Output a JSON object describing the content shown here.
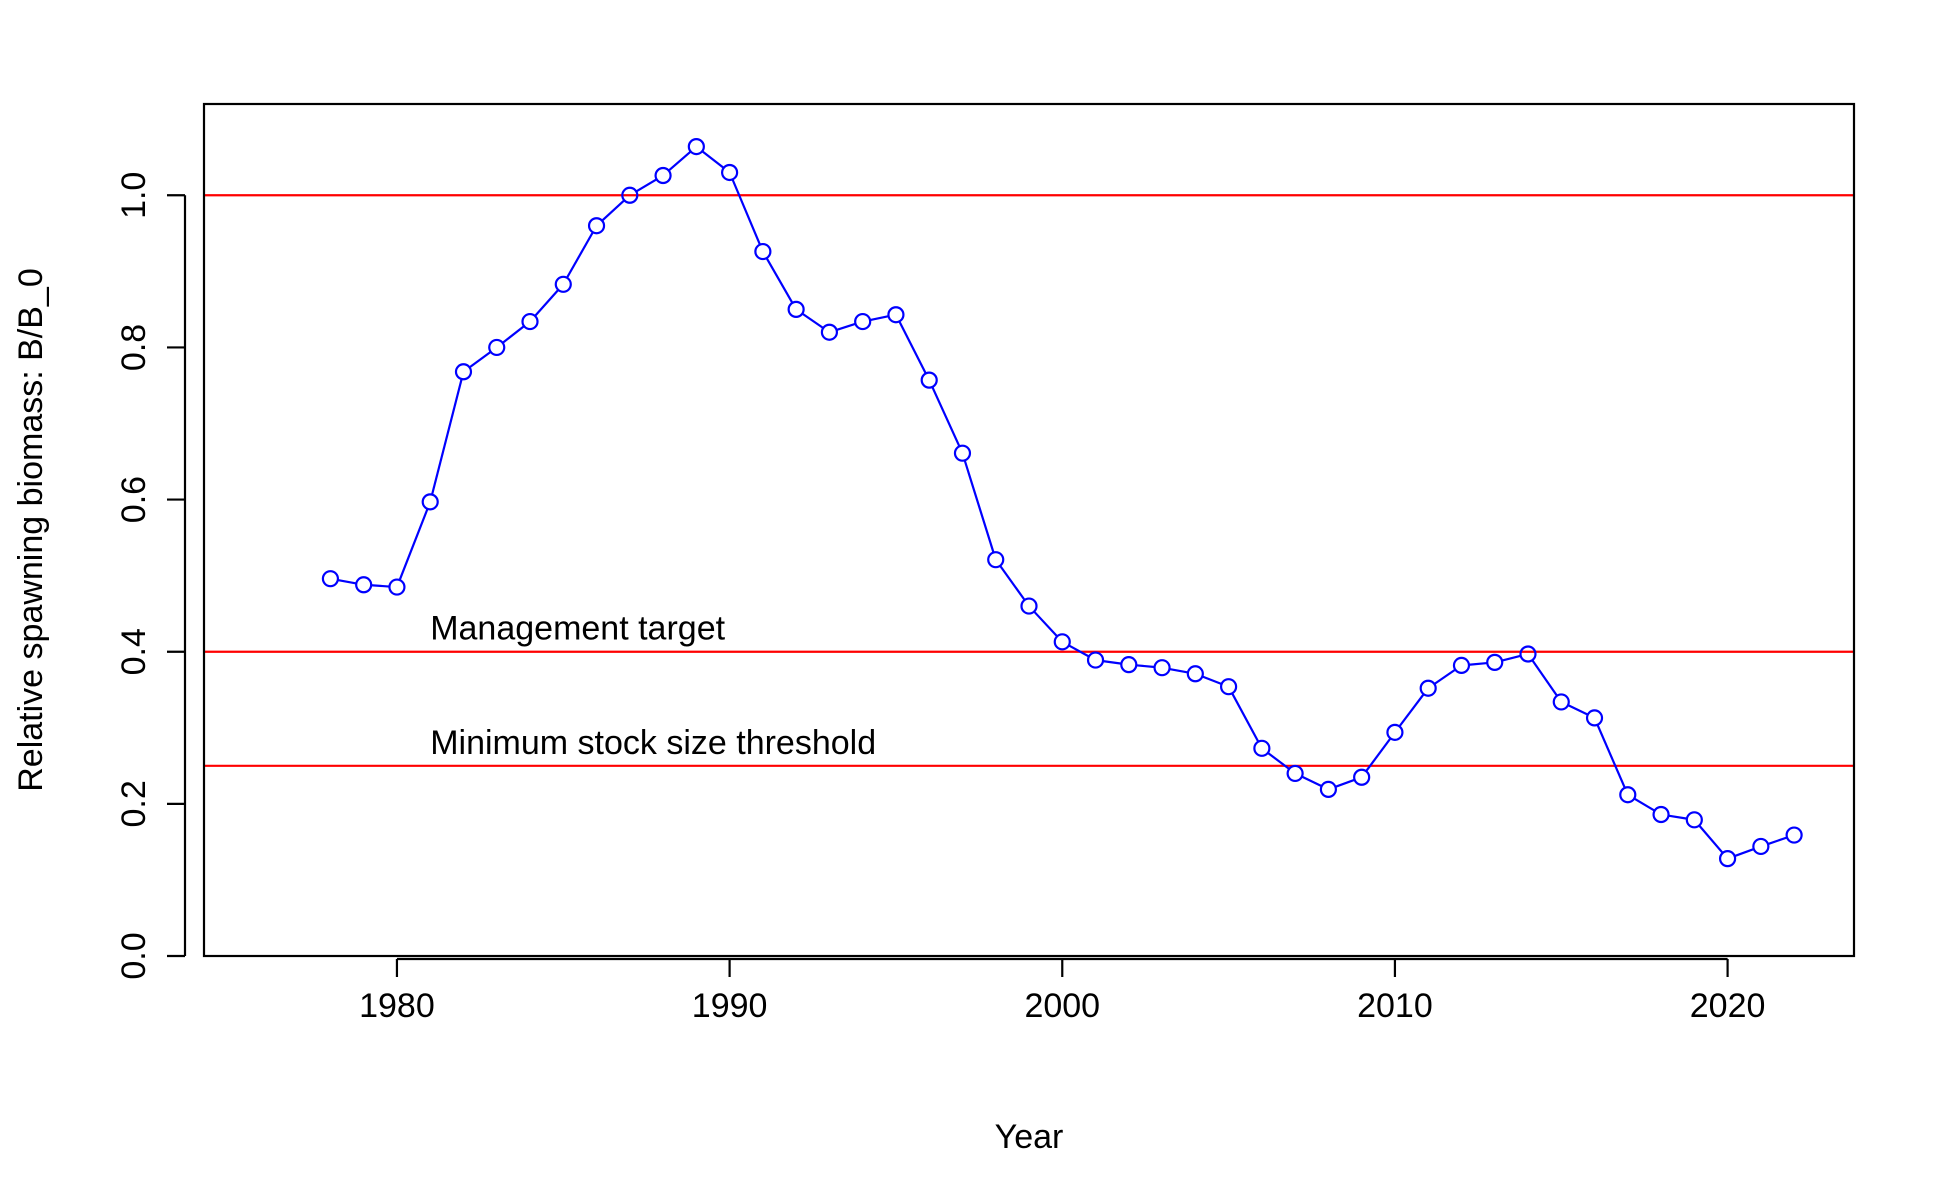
{
  "chart_data": {
    "type": "line",
    "title": "",
    "xlabel": "Year",
    "ylabel": "Relative spawning biomass: B/B_0",
    "xlim": [
      1974.2,
      2023.8
    ],
    "ylim": [
      0,
      1.12
    ],
    "x_ticks": [
      1980,
      1990,
      2000,
      2010,
      2020
    ],
    "x_tick_labels": [
      "1980",
      "1990",
      "2000",
      "2010",
      "2020"
    ],
    "y_ticks": [
      0.0,
      0.2,
      0.4,
      0.6,
      0.8,
      1.0
    ],
    "y_tick_labels": [
      "0.0",
      "0.2",
      "0.4",
      "0.6",
      "0.8",
      "1.0"
    ],
    "grid": false,
    "legend": "none",
    "series": [
      {
        "color": "#0000FF",
        "marker": "open-circle",
        "x": [
          1978,
          1979,
          1980,
          1981,
          1982,
          1983,
          1984,
          1985,
          1986,
          1987,
          1988,
          1989,
          1990,
          1991,
          1992,
          1993,
          1994,
          1995,
          1996,
          1997,
          1998,
          1999,
          2000,
          2001,
          2002,
          2003,
          2004,
          2005,
          2006,
          2007,
          2008,
          2009,
          2010,
          2011,
          2012,
          2013,
          2014,
          2015,
          2016,
          2017,
          2018,
          2019,
          2020,
          2021,
          2022
        ],
        "values": [
          0.496,
          0.488,
          0.485,
          0.597,
          0.768,
          0.8,
          0.834,
          0.883,
          0.96,
          1.0,
          1.026,
          1.064,
          1.03,
          0.926,
          0.85,
          0.82,
          0.834,
          0.843,
          0.757,
          0.661,
          0.521,
          0.46,
          0.413,
          0.389,
          0.383,
          0.379,
          0.371,
          0.354,
          0.273,
          0.24,
          0.219,
          0.235,
          0.294,
          0.352,
          0.382,
          0.386,
          0.397,
          0.334,
          0.313,
          0.212,
          0.186,
          0.179,
          0.128,
          0.144,
          0.159
        ]
      }
    ],
    "reference_lines": [
      {
        "y": 1.0,
        "color": "#FF0000",
        "label": ""
      },
      {
        "y": 0.4,
        "color": "#FF0000",
        "label": "Management target"
      },
      {
        "y": 0.25,
        "color": "#FF0000",
        "label": "Minimum stock size threshold"
      }
    ],
    "annotations": [
      {
        "text": "Management target",
        "x": 1981,
        "y": 0.4
      },
      {
        "text": "Minimum stock size threshold",
        "x": 1981,
        "y": 0.25
      }
    ]
  }
}
